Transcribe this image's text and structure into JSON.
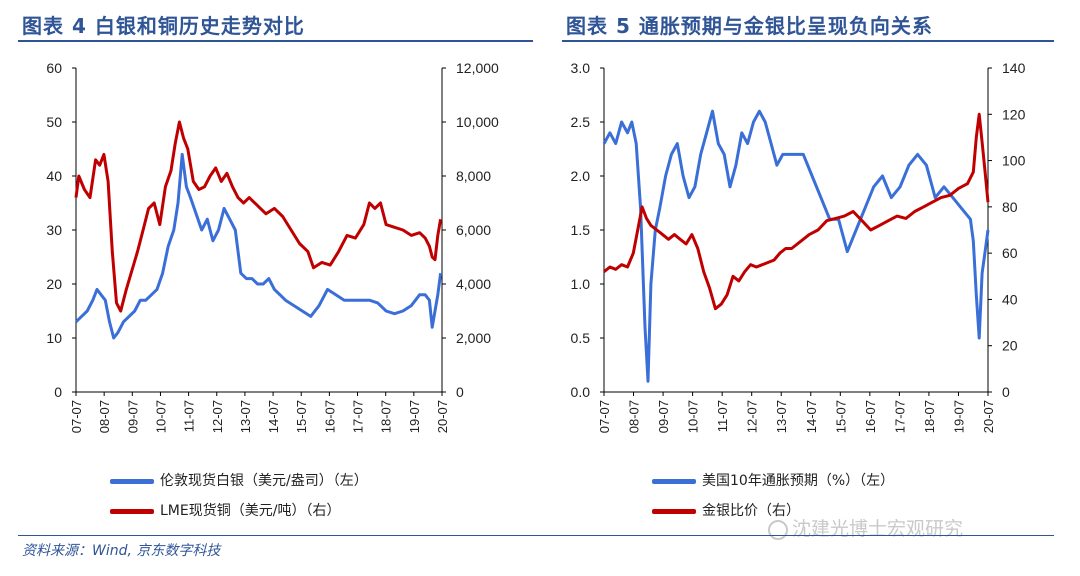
{
  "header": {
    "left_title": "图表 4 白银和铜历史走势对比",
    "right_title": "图表 5 通胀预期与金银比呈现负向关系"
  },
  "footer": {
    "source": "资料来源：Wind, 京东数字科技",
    "watermark": "沈建光博士宏观研究"
  },
  "colors": {
    "blue": "#3a6fd8",
    "red": "#c00000",
    "title": "#2f5597"
  },
  "chart_data": [
    {
      "type": "line",
      "x_ticks": [
        "07-07",
        "08-07",
        "09-07",
        "10-07",
        "11-07",
        "12-07",
        "13-07",
        "14-07",
        "15-07",
        "16-07",
        "17-07",
        "18-07",
        "19-07",
        "20-07"
      ],
      "y_left_ticks": [
        "0",
        "10",
        "20",
        "30",
        "40",
        "50",
        "60"
      ],
      "y_right_ticks": [
        "0",
        "2,000",
        "4,000",
        "6,000",
        "8,000",
        "10,000",
        "12,000"
      ],
      "ylim_left": [
        0,
        60
      ],
      "ylim_right": [
        0,
        12000
      ],
      "series": [
        {
          "name": "伦敦现货白银（美元/盎司）（左）",
          "axis": "left",
          "color": "#3a6fd8",
          "x": [
            2007.5,
            2007.7,
            2007.9,
            2008.1,
            2008.25,
            2008.4,
            2008.55,
            2008.7,
            2008.85,
            2009.0,
            2009.2,
            2009.4,
            2009.6,
            2009.8,
            2010.0,
            2010.2,
            2010.4,
            2010.6,
            2010.8,
            2011.0,
            2011.15,
            2011.3,
            2011.45,
            2011.6,
            2011.8,
            2012.0,
            2012.2,
            2012.4,
            2012.6,
            2012.8,
            2013.0,
            2013.2,
            2013.4,
            2013.6,
            2013.8,
            2014.0,
            2014.2,
            2014.4,
            2014.6,
            2014.8,
            2015.0,
            2015.3,
            2015.6,
            2015.9,
            2016.2,
            2016.5,
            2016.8,
            2017.1,
            2017.4,
            2017.7,
            2018.0,
            2018.3,
            2018.6,
            2018.9,
            2019.2,
            2019.5,
            2019.8,
            2020.0,
            2020.15,
            2020.25,
            2020.35,
            2020.45,
            2020.55
          ],
          "values": [
            13,
            14,
            15,
            17,
            19,
            18,
            17,
            13,
            10,
            11,
            13,
            14,
            15,
            17,
            17,
            18,
            19,
            22,
            27,
            30,
            35,
            44,
            38,
            36,
            33,
            30,
            32,
            28,
            30,
            34,
            32,
            30,
            22,
            21,
            21,
            20,
            20,
            21,
            19,
            18,
            17,
            16,
            15,
            14,
            16,
            19,
            18,
            17,
            17,
            17,
            17,
            16.5,
            15,
            14.5,
            15,
            16,
            18,
            18,
            17,
            12,
            15,
            18,
            22
          ]
        },
        {
          "name": "LME现货铜（美元/吨）（右）",
          "axis": "right",
          "color": "#c00000",
          "x": [
            2007.5,
            2007.6,
            2007.8,
            2008.0,
            2008.2,
            2008.35,
            2008.5,
            2008.65,
            2008.8,
            2008.95,
            2009.1,
            2009.3,
            2009.5,
            2009.7,
            2009.9,
            2010.1,
            2010.3,
            2010.5,
            2010.7,
            2010.9,
            2011.05,
            2011.2,
            2011.35,
            2011.5,
            2011.7,
            2011.9,
            2012.1,
            2012.3,
            2012.5,
            2012.7,
            2012.9,
            2013.1,
            2013.3,
            2013.5,
            2013.7,
            2013.9,
            2014.1,
            2014.3,
            2014.6,
            2014.9,
            2015.2,
            2015.5,
            2015.8,
            2016.0,
            2016.3,
            2016.6,
            2016.9,
            2017.2,
            2017.5,
            2017.8,
            2018.0,
            2018.2,
            2018.4,
            2018.6,
            2018.9,
            2019.2,
            2019.5,
            2019.8,
            2020.0,
            2020.15,
            2020.25,
            2020.35,
            2020.45,
            2020.55
          ],
          "values": [
            7200,
            8000,
            7500,
            7200,
            8600,
            8400,
            8800,
            7800,
            5200,
            3300,
            3000,
            3800,
            4500,
            5200,
            6000,
            6800,
            7000,
            6200,
            7600,
            8200,
            9200,
            10000,
            9400,
            9000,
            7800,
            7500,
            7600,
            8000,
            8300,
            7800,
            8100,
            7600,
            7200,
            7000,
            7200,
            7000,
            6800,
            6600,
            6800,
            6500,
            6000,
            5500,
            5200,
            4600,
            4800,
            4700,
            5200,
            5800,
            5700,
            6200,
            7000,
            6800,
            7000,
            6200,
            6100,
            6000,
            5800,
            5900,
            5700,
            5400,
            5000,
            4900,
            5800,
            6400
          ]
        }
      ]
    },
    {
      "type": "line",
      "x_ticks": [
        "07-07",
        "08-07",
        "09-07",
        "10-07",
        "11-07",
        "12-07",
        "13-07",
        "14-07",
        "15-07",
        "16-07",
        "17-07",
        "18-07",
        "19-07",
        "20-07"
      ],
      "y_left_ticks": [
        "0.0",
        "0.5",
        "1.0",
        "1.5",
        "2.0",
        "2.5",
        "3.0"
      ],
      "y_right_ticks": [
        "0",
        "20",
        "40",
        "60",
        "80",
        "100",
        "120",
        "140"
      ],
      "ylim_left": [
        0,
        3
      ],
      "ylim_right": [
        0,
        140
      ],
      "series": [
        {
          "name": "美国10年通胀预期（%）（左）",
          "axis": "left",
          "color": "#3a6fd8",
          "x": [
            2007.5,
            2007.7,
            2007.9,
            2008.1,
            2008.3,
            2008.45,
            2008.6,
            2008.75,
            2008.9,
            2009.0,
            2009.1,
            2009.25,
            2009.4,
            2009.6,
            2009.8,
            2010.0,
            2010.2,
            2010.4,
            2010.6,
            2010.8,
            2011.0,
            2011.2,
            2011.4,
            2011.6,
            2011.8,
            2012.0,
            2012.2,
            2012.4,
            2012.6,
            2012.8,
            2013.0,
            2013.2,
            2013.4,
            2013.6,
            2013.8,
            2014.0,
            2014.3,
            2014.6,
            2014.9,
            2015.2,
            2015.5,
            2015.8,
            2016.1,
            2016.4,
            2016.7,
            2017.0,
            2017.3,
            2017.6,
            2017.9,
            2018.2,
            2018.5,
            2018.8,
            2019.1,
            2019.4,
            2019.7,
            2020.0,
            2020.1,
            2020.2,
            2020.3,
            2020.4,
            2020.5,
            2020.6
          ],
          "values": [
            2.3,
            2.4,
            2.3,
            2.5,
            2.4,
            2.5,
            2.3,
            1.7,
            0.6,
            0.1,
            1.0,
            1.5,
            1.7,
            2.0,
            2.2,
            2.3,
            2.0,
            1.8,
            1.9,
            2.2,
            2.4,
            2.6,
            2.3,
            2.2,
            1.9,
            2.1,
            2.4,
            2.3,
            2.5,
            2.6,
            2.5,
            2.3,
            2.1,
            2.2,
            2.2,
            2.2,
            2.2,
            2.0,
            1.8,
            1.6,
            1.6,
            1.3,
            1.5,
            1.7,
            1.9,
            2.0,
            1.8,
            1.9,
            2.1,
            2.2,
            2.1,
            1.8,
            1.9,
            1.8,
            1.7,
            1.6,
            1.4,
            0.9,
            0.5,
            1.1,
            1.3,
            1.5
          ]
        },
        {
          "name": "金银比价（右）",
          "axis": "right",
          "color": "#c00000",
          "x": [
            2007.5,
            2007.7,
            2007.9,
            2008.1,
            2008.3,
            2008.5,
            2008.65,
            2008.8,
            2008.95,
            2009.1,
            2009.3,
            2009.5,
            2009.7,
            2009.9,
            2010.1,
            2010.3,
            2010.5,
            2010.7,
            2010.9,
            2011.1,
            2011.3,
            2011.5,
            2011.7,
            2011.9,
            2012.1,
            2012.3,
            2012.5,
            2012.7,
            2012.9,
            2013.1,
            2013.3,
            2013.5,
            2013.7,
            2013.9,
            2014.2,
            2014.5,
            2014.8,
            2015.1,
            2015.4,
            2015.7,
            2016.0,
            2016.3,
            2016.6,
            2016.9,
            2017.2,
            2017.5,
            2017.8,
            2018.1,
            2018.4,
            2018.7,
            2019.0,
            2019.3,
            2019.6,
            2019.9,
            2020.1,
            2020.2,
            2020.3,
            2020.4,
            2020.5,
            2020.6
          ],
          "values": [
            52,
            54,
            53,
            55,
            54,
            60,
            70,
            80,
            75,
            72,
            70,
            68,
            66,
            68,
            66,
            64,
            68,
            62,
            52,
            45,
            36,
            38,
            42,
            50,
            48,
            52,
            55,
            54,
            55,
            56,
            57,
            60,
            62,
            62,
            65,
            68,
            70,
            74,
            75,
            76,
            78,
            74,
            70,
            72,
            74,
            76,
            75,
            78,
            80,
            82,
            84,
            85,
            88,
            90,
            95,
            110,
            120,
            108,
            95,
            82
          ]
        }
      ]
    }
  ]
}
